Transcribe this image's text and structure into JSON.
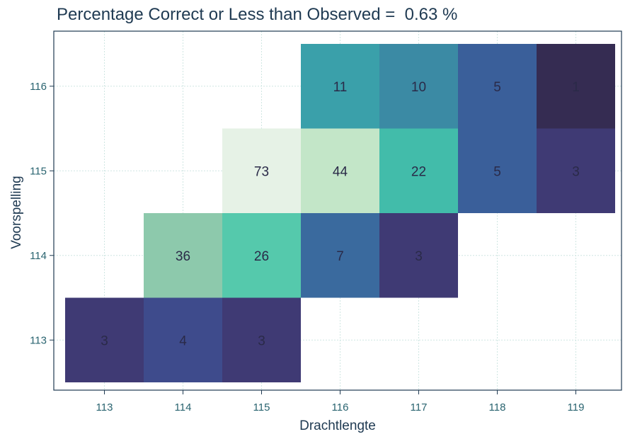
{
  "chart_data": {
    "type": "heatmap",
    "title": "Percentage Correct or Less than Observed =  0.63 %",
    "xlabel": "Drachtlengte",
    "ylabel": "Voorspelling",
    "x_categories": [
      "113",
      "114",
      "115",
      "116",
      "117",
      "118",
      "119"
    ],
    "y_categories": [
      "113",
      "114",
      "115",
      "116"
    ],
    "grid": true,
    "cells": [
      {
        "x": "113",
        "y": "113",
        "value": 3,
        "color": "#3f3a74"
      },
      {
        "x": "114",
        "y": "113",
        "value": 4,
        "color": "#3e4b8c"
      },
      {
        "x": "115",
        "y": "113",
        "value": 3,
        "color": "#3f3a74"
      },
      {
        "x": "114",
        "y": "114",
        "value": 36,
        "color": "#8dc9ac"
      },
      {
        "x": "115",
        "y": "114",
        "value": 26,
        "color": "#55c9ac"
      },
      {
        "x": "116",
        "y": "114",
        "value": 7,
        "color": "#3a6a9e"
      },
      {
        "x": "117",
        "y": "114",
        "value": 3,
        "color": "#3f3a74"
      },
      {
        "x": "115",
        "y": "115",
        "value": 73,
        "color": "#e6f2e6"
      },
      {
        "x": "116",
        "y": "115",
        "value": 44,
        "color": "#c3e6c8"
      },
      {
        "x": "117",
        "y": "115",
        "value": 22,
        "color": "#42bcaa"
      },
      {
        "x": "118",
        "y": "115",
        "value": 5,
        "color": "#3a5f9a"
      },
      {
        "x": "119",
        "y": "115",
        "value": 3,
        "color": "#3f3a74"
      },
      {
        "x": "116",
        "y": "116",
        "value": 11,
        "color": "#3aa0aa"
      },
      {
        "x": "117",
        "y": "116",
        "value": 10,
        "color": "#3b8aa4"
      },
      {
        "x": "118",
        "y": "116",
        "value": 5,
        "color": "#3a5f9a"
      },
      {
        "x": "119",
        "y": "116",
        "value": 1,
        "color": "#352c52"
      }
    ]
  }
}
